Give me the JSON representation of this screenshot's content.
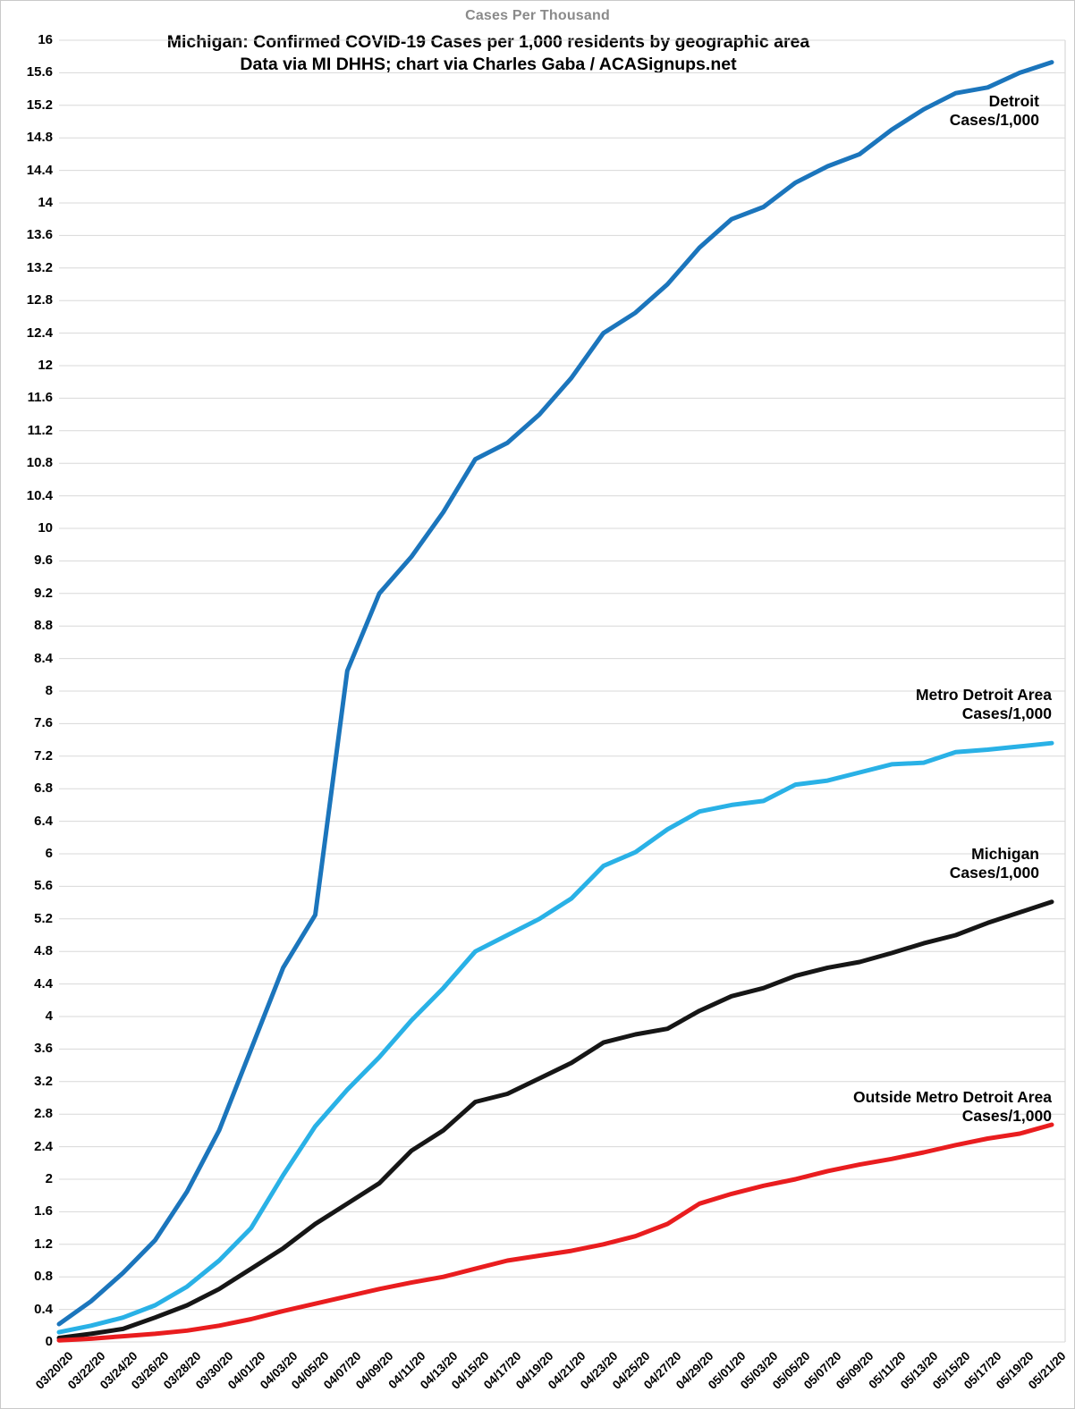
{
  "page": {
    "top_label": "Cases Per Thousand",
    "title_line1": "Michigan: Confirmed COVID-19 Cases per 1,000 residents by geographic area",
    "title_line2": "Data via MI DHHS; chart via Charles Gaba / ACASignups.net"
  },
  "style": {
    "background": "#ffffff",
    "grid_color": "#d8d8d8",
    "plot_border_color": "#c9c9c9",
    "top_label_color": "#8a8a8a",
    "text_color": "#000000"
  },
  "chart_data": {
    "type": "line",
    "title": "Michigan: Confirmed COVID-19 Cases per 1,000 residents by geographic area",
    "subtitle": "Data via MI DHHS; chart via Charles Gaba / ACASignups.net",
    "axis_title": "Cases Per Thousand",
    "xlabel": "",
    "ylabel": "",
    "ylim": [
      0,
      16
    ],
    "y_tick_step": 0.4,
    "grid": "horizontal",
    "legend_position": "inline-labels-at-line-ends",
    "y_tick_labels": [
      "16",
      "15.6",
      "15.2",
      "14.8",
      "14.4",
      "14",
      "13.6",
      "13.2",
      "12.8",
      "12.4",
      "12",
      "11.6",
      "11.2",
      "10.8",
      "10.4",
      "10",
      "9.6",
      "9.2",
      "8.8",
      "8.4",
      "8",
      "7.6",
      "7.2",
      "6.8",
      "6.4",
      "6",
      "5.6",
      "5.2",
      "4.8",
      "4.4",
      "4",
      "3.6",
      "3.2",
      "2.8",
      "2.4",
      "2",
      "1.6",
      "1.2",
      "0.8",
      "0.4",
      "0"
    ],
    "x_tick_labels": [
      "03/20/20",
      "03/22/20",
      "03/24/20",
      "03/26/20",
      "03/28/20",
      "03/30/20",
      "04/01/20",
      "04/03/20",
      "04/05/20",
      "04/07/20",
      "04/09/20",
      "04/11/20",
      "04/13/20",
      "04/15/20",
      "04/17/20",
      "04/19/20",
      "04/21/20",
      "04/23/20",
      "04/25/20",
      "04/27/20",
      "04/29/20",
      "05/01/20",
      "05/03/20",
      "05/05/20",
      "05/07/20",
      "05/09/20",
      "05/11/20",
      "05/13/20",
      "05/15/20",
      "05/17/20",
      "05/19/20",
      "05/21/20"
    ],
    "series": [
      {
        "name": "Detroit",
        "label_line1": "Detroit",
        "label_line2": "Cases/1,000",
        "color": "#1b75bc",
        "values": [
          0.22,
          0.5,
          0.85,
          1.25,
          1.85,
          2.6,
          3.6,
          4.6,
          5.25,
          8.25,
          9.2,
          9.65,
          10.2,
          10.85,
          11.05,
          11.4,
          11.85,
          12.4,
          12.65,
          13.0,
          13.45,
          13.8,
          13.95,
          14.25,
          14.45,
          14.6,
          14.9,
          15.15,
          15.35,
          15.42,
          15.6,
          15.73
        ]
      },
      {
        "name": "Metro Detroit Area",
        "label_line1": "Metro Detroit Area",
        "label_line2": "Cases/1,000",
        "color": "#29b1e6",
        "values": [
          0.12,
          0.2,
          0.3,
          0.45,
          0.68,
          1.0,
          1.4,
          2.05,
          2.65,
          3.1,
          3.5,
          3.95,
          4.35,
          4.8,
          5.0,
          5.2,
          5.45,
          5.85,
          6.02,
          6.3,
          6.52,
          6.6,
          6.65,
          6.85,
          6.9,
          7.0,
          7.1,
          7.12,
          7.25,
          7.28,
          7.32,
          7.36
        ]
      },
      {
        "name": "Michigan",
        "label_line1": "Michigan",
        "label_line2": "Cases/1,000",
        "color": "#161616",
        "values": [
          0.05,
          0.1,
          0.16,
          0.3,
          0.45,
          0.65,
          0.9,
          1.15,
          1.45,
          1.7,
          1.95,
          2.35,
          2.6,
          2.95,
          3.05,
          3.24,
          3.43,
          3.68,
          3.78,
          3.85,
          4.07,
          4.25,
          4.35,
          4.5,
          4.6,
          4.67,
          4.78,
          4.9,
          5.0,
          5.15,
          5.28,
          5.41
        ]
      },
      {
        "name": "Outside Metro Detroit Area",
        "label_line1": "Outside Metro Detroit Area",
        "label_line2": "Cases/1,000",
        "color": "#e91d1f",
        "values": [
          0.02,
          0.04,
          0.07,
          0.1,
          0.14,
          0.2,
          0.28,
          0.38,
          0.47,
          0.56,
          0.65,
          0.73,
          0.8,
          0.9,
          1.0,
          1.06,
          1.12,
          1.2,
          1.3,
          1.45,
          1.7,
          1.82,
          1.92,
          2.0,
          2.1,
          2.18,
          2.25,
          2.33,
          2.42,
          2.5,
          2.56,
          2.67
        ]
      }
    ]
  }
}
